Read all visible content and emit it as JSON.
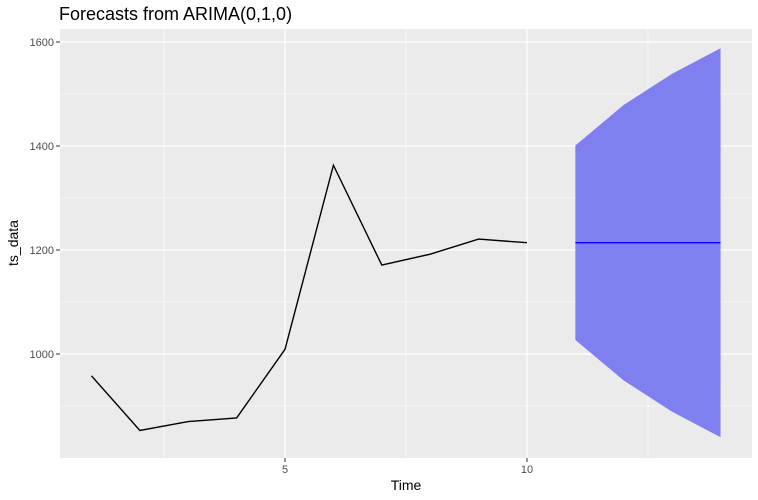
{
  "chart_data": {
    "type": "line",
    "title": "Forecasts from ARIMA(0,1,0)",
    "xlabel": "Time",
    "ylabel": "ts_data",
    "xlim": [
      0.35,
      14.65
    ],
    "ylim": [
      800,
      1625
    ],
    "x_ticks": [
      5,
      10
    ],
    "y_ticks": [
      1000,
      1200,
      1400,
      1600
    ],
    "grid": true,
    "series": [
      {
        "x": [
          1,
          2,
          3,
          4,
          5,
          6,
          7,
          8,
          9,
          10
        ],
        "values": [
          958,
          853,
          870,
          877,
          1009,
          1363,
          1171,
          1192,
          1221,
          1214
        ]
      },
      {
        "x": [
          11,
          14
        ],
        "values": [
          1214,
          1214
        ]
      }
    ],
    "band": {
      "x": [
        11,
        12,
        13,
        14
      ],
      "upper": [
        1401,
        1479,
        1539,
        1588
      ],
      "lower": [
        1027,
        949,
        889,
        840
      ]
    },
    "colors": {
      "panel": "#ebebeb",
      "grid_major": "#ffffff",
      "history_line": "#000000",
      "forecast_line": "#0000ff",
      "interval_fill": "#7f7ff0"
    }
  }
}
